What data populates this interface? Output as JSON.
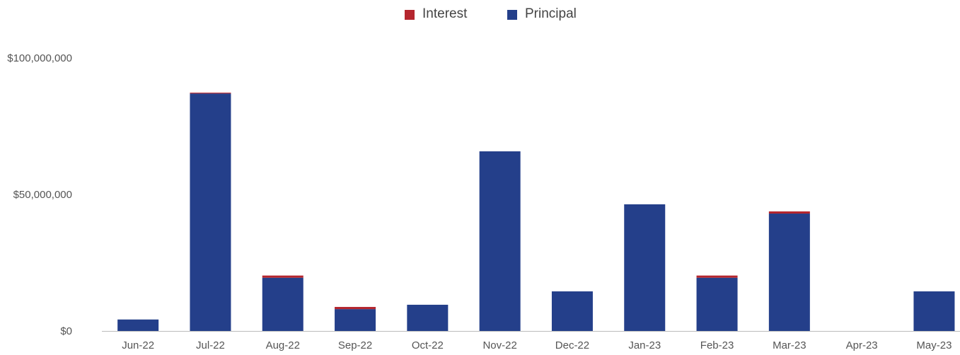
{
  "chart_data": {
    "type": "stacked_bar",
    "categories": [
      "Jun-22",
      "Jul-22",
      "Aug-22",
      "Sep-22",
      "Oct-22",
      "Nov-22",
      "Dec-22",
      "Jan-23",
      "Feb-23",
      "Mar-23",
      "Apr-23",
      "May-23"
    ],
    "series": [
      {
        "name": "Interest",
        "color": "#b5262e",
        "values": [
          0,
          0.3,
          0.8,
          0.8,
          0,
          0,
          0,
          0,
          0.8,
          0.8,
          0,
          0
        ]
      },
      {
        "name": "Principal",
        "color": "#243f8a",
        "values": [
          4.2,
          87,
          19.5,
          8,
          9.6,
          65.8,
          14.5,
          46.4,
          19.5,
          43,
          0,
          14.5
        ]
      }
    ],
    "ylim": [
      0,
      100
    ],
    "yticks": [
      {
        "value": 0,
        "label": "$0"
      },
      {
        "value": 50,
        "label": "$50,000,000"
      },
      {
        "value": 100,
        "label": "$100,000,000"
      }
    ],
    "grid": false
  }
}
